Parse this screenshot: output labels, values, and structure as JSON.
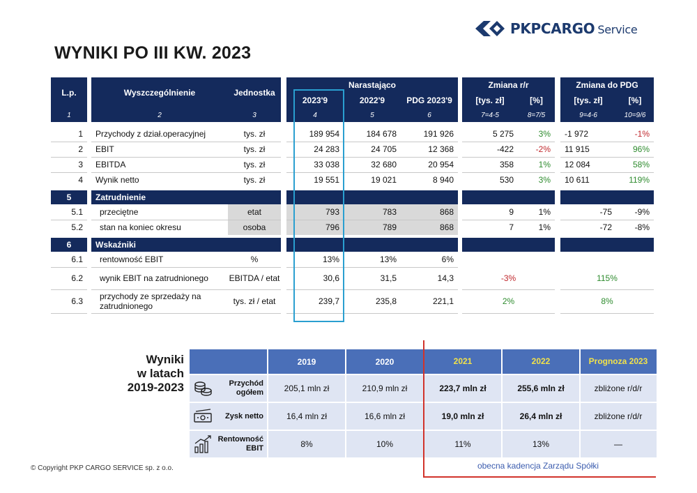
{
  "logo": {
    "brand": "PKPCARGO",
    "suffix": "Service"
  },
  "title": "WYNIKI PO III KW. 2023",
  "table": {
    "headers": {
      "lp": "L.p.",
      "wysz": "Wyszczególnienie",
      "jedn": "Jednostka",
      "narastajaco": "Narastająco",
      "y2023": "2023'9",
      "y2022": "2022'9",
      "pdg": "PDG 2023'9",
      "zmiana_rr": "Zmiana r/r",
      "zmiana_pdg": "Zmiana do PDG",
      "tys": "[tys. zł]",
      "pct": "[%]"
    },
    "numbers": [
      "1",
      "2",
      "3",
      "4",
      "5",
      "6",
      "7=4-5",
      "8=7/5",
      "9=4-6",
      "10=9/6"
    ],
    "rows": [
      {
        "lp": "1",
        "name": "Przychody z dział.operacyjnej",
        "unit": "tys. zł",
        "v2023": "189 954",
        "v2022": "184 678",
        "pdg": "191 926",
        "rr_abs": "5 275",
        "rr_pct": "3%",
        "pdg_abs": "-1 972",
        "pdg_pct": "-1%"
      },
      {
        "lp": "2",
        "name": "EBIT",
        "unit": "tys. zł",
        "v2023": "24 283",
        "v2022": "24 705",
        "pdg": "12 368",
        "rr_abs": "-422",
        "rr_pct": "-2%",
        "pdg_abs": "11 915",
        "pdg_pct": "96%"
      },
      {
        "lp": "3",
        "name": "EBITDA",
        "unit": "tys. zł",
        "v2023": "33 038",
        "v2022": "32 680",
        "pdg": "20 954",
        "rr_abs": "358",
        "rr_pct": "1%",
        "pdg_abs": "12 084",
        "pdg_pct": "58%"
      },
      {
        "lp": "4",
        "name": "Wynik netto",
        "unit": "tys. zł",
        "v2023": "19 551",
        "v2022": "19 021",
        "pdg": "8 940",
        "rr_abs": "530",
        "rr_pct": "3%",
        "pdg_abs": "10 611",
        "pdg_pct": "119%"
      }
    ],
    "section5": {
      "lp": "5",
      "label": "Zatrudnienie"
    },
    "emp_rows": [
      {
        "lp": "5.1",
        "name": "przeciętne",
        "unit": "etat",
        "v2023": "793",
        "v2022": "783",
        "pdg": "868",
        "rr_abs": "9",
        "rr_pct": "1%",
        "pdg_abs": "-75",
        "pdg_pct": "-9%"
      },
      {
        "lp": "5.2",
        "name": "stan na koniec okresu",
        "unit": "osoba",
        "v2023": "796",
        "v2022": "789",
        "pdg": "868",
        "rr_abs": "7",
        "rr_pct": "1%",
        "pdg_abs": "-72",
        "pdg_pct": "-8%"
      }
    ],
    "section6": {
      "lp": "6",
      "label": "Wskaźniki"
    },
    "ind_rows": [
      {
        "lp": "6.1",
        "name": "rentowność EBIT",
        "unit": "%",
        "v2023": "13%",
        "v2022": "13%",
        "pdg": "6%",
        "rr": "",
        "pdgc": ""
      },
      {
        "lp": "6.2",
        "name": "wynik EBIT na zatrudnionego",
        "unit": "EBITDA / etat",
        "v2023": "30,6",
        "v2022": "31,5",
        "pdg": "14,3",
        "rr": "-3%",
        "pdgc": "115%"
      },
      {
        "lp": "6.3",
        "name": "przychody ze sprzedaży na zatrudnionego",
        "unit": "tys. zł / etat",
        "v2023": "239,7",
        "v2022": "235,8",
        "pdg": "221,1",
        "rr": "2%",
        "pdgc": "8%"
      }
    ]
  },
  "summary": {
    "title_line1": "Wyniki",
    "title_line2": "w latach",
    "title_line3": "2019-2023",
    "years": [
      "2019",
      "2020",
      "2021",
      "2022",
      "Prognoza 2023"
    ],
    "rows": [
      {
        "icon": "coins-icon",
        "label": "Przychód ogółem",
        "values": [
          "205,1 mln zł",
          "210,9 mln zł",
          "223,7 mln zł",
          "255,6 mln zł",
          "zbliżone r/d/r"
        ]
      },
      {
        "icon": "banknote-icon",
        "label": "Zysk netto",
        "values": [
          "16,4 mln zł",
          "16,6 mln zł",
          "19,0 mln zł",
          "26,4 mln zł",
          "zbliżone r/d/r"
        ]
      },
      {
        "icon": "growth-chart-icon",
        "label": "Rentowność EBIT",
        "values": [
          "8%",
          "10%",
          "11%",
          "13%",
          "—"
        ]
      }
    ],
    "kadencja": "obecna kadencja Zarządu Spółki"
  },
  "copyright": "© Copyright PKP CARGO SERVICE sp. z o.o.",
  "colors": {
    "navy": "#142a5c",
    "green": "#2e8b2e",
    "red": "#c0282d",
    "highlight": "#2a9fd0",
    "summary_header": "#4a6fb8"
  }
}
